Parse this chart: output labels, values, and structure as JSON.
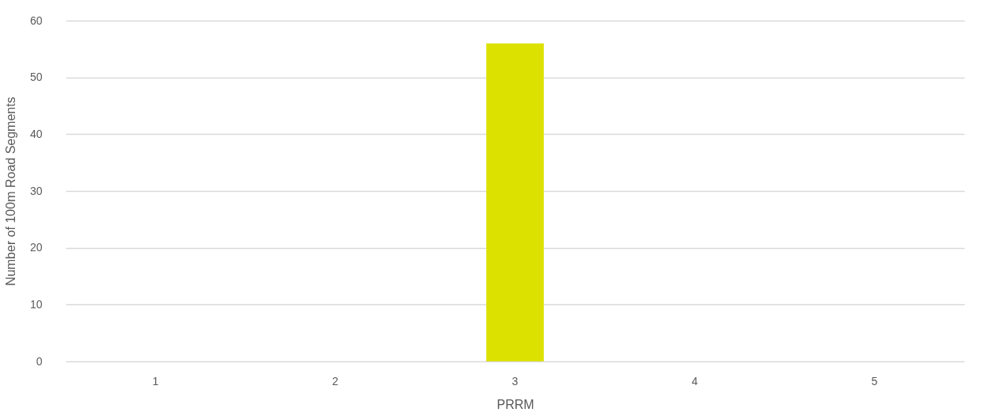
{
  "chart_data": {
    "type": "bar",
    "xlabel": "PRRM",
    "ylabel": "Number of 100m Road Segments",
    "categories": [
      "1",
      "2",
      "3",
      "4",
      "5"
    ],
    "values": [
      0,
      0,
      56,
      0,
      0
    ],
    "color": "#dce100",
    "ylim": [
      0,
      60
    ],
    "yticks": [
      0,
      10,
      20,
      30,
      40,
      50,
      60
    ],
    "grid": "y"
  }
}
